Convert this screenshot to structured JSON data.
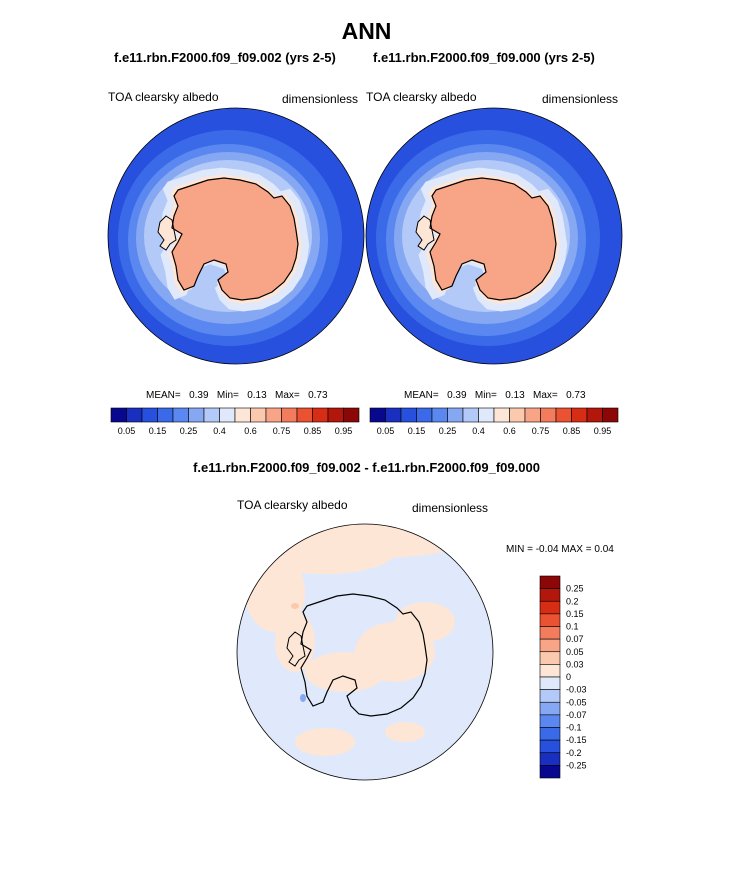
{
  "page_title": "ANN",
  "panels": [
    {
      "case_title": "f.e11.rbn.F2000.f09_f09.002 (yrs 2-5)",
      "variable": "TOA clearsky albedo",
      "units": "dimensionless",
      "stats": {
        "mean_label": "MEAN=",
        "mean": "0.39",
        "min_label": "Min=",
        "min": "0.13",
        "max_label": "Max=",
        "max": "0.73"
      }
    },
    {
      "case_title": "f.e11.rbn.F2000.f09_f09.000 (yrs 2-5)",
      "variable": "TOA clearsky albedo",
      "units": "dimensionless",
      "stats": {
        "mean_label": "MEAN=",
        "mean": "0.39",
        "min_label": "Min=",
        "min": "0.13",
        "max_label": "Max=",
        "max": "0.73"
      }
    }
  ],
  "colorbar_main": {
    "colors": [
      "#08088f",
      "#1a2fc0",
      "#2650dd",
      "#3b6ae9",
      "#5a88f0",
      "#86a8f3",
      "#b3c9f7",
      "#dfe9fb",
      "#fde6d6",
      "#fbc9ad",
      "#f8a487",
      "#f27c5c",
      "#ea5232",
      "#d62d14",
      "#b3160b",
      "#8c0707"
    ],
    "tick_labels": [
      "0.05",
      "0.15",
      "0.25",
      "0.4",
      "0.6",
      "0.75",
      "0.85",
      "0.95"
    ]
  },
  "difference": {
    "title": "f.e11.rbn.F2000.f09_f09.002 - f.e11.rbn.F2000.f09_f09.000",
    "variable": "TOA clearsky albedo",
    "units": "dimensionless",
    "minmax_text": "MIN =  -0.04 MAX =   0.04",
    "colorbar": {
      "colors": [
        "#8c0707",
        "#b3160b",
        "#d62d14",
        "#ea5232",
        "#f27c5c",
        "#f8a487",
        "#fbc9ad",
        "#fde6d6",
        "#dfe9fb",
        "#b3c9f7",
        "#86a8f3",
        "#5a88f0",
        "#3b6ae9",
        "#2650dd",
        "#1a2fc0",
        "#08088f"
      ],
      "tick_labels": [
        "0.25",
        "0.2",
        "0.15",
        "0.1",
        "0.07",
        "0.05",
        "0.03",
        "0",
        "-0.03",
        "-0.05",
        "-0.07",
        "-0.1",
        "-0.15",
        "-0.2",
        "-0.25"
      ]
    }
  },
  "map_colors": {
    "ocean_deep": "#2650dd",
    "ocean_mid": "#3b6ae9",
    "ocean_light": "#5a88f0",
    "ocean_pale": "#86a8f3",
    "sea_ice": "#b3c9f7",
    "ice_edge": "#dfe9fb",
    "shelf": "#fde6d6",
    "land": "#f8a487",
    "land_high": "#f5a07c",
    "diff_neg": "#dfe9fb",
    "diff_pos": "#fde6d6",
    "diff_negdot": "#86a8f3",
    "diff_posdot": "#fbc9ad"
  }
}
